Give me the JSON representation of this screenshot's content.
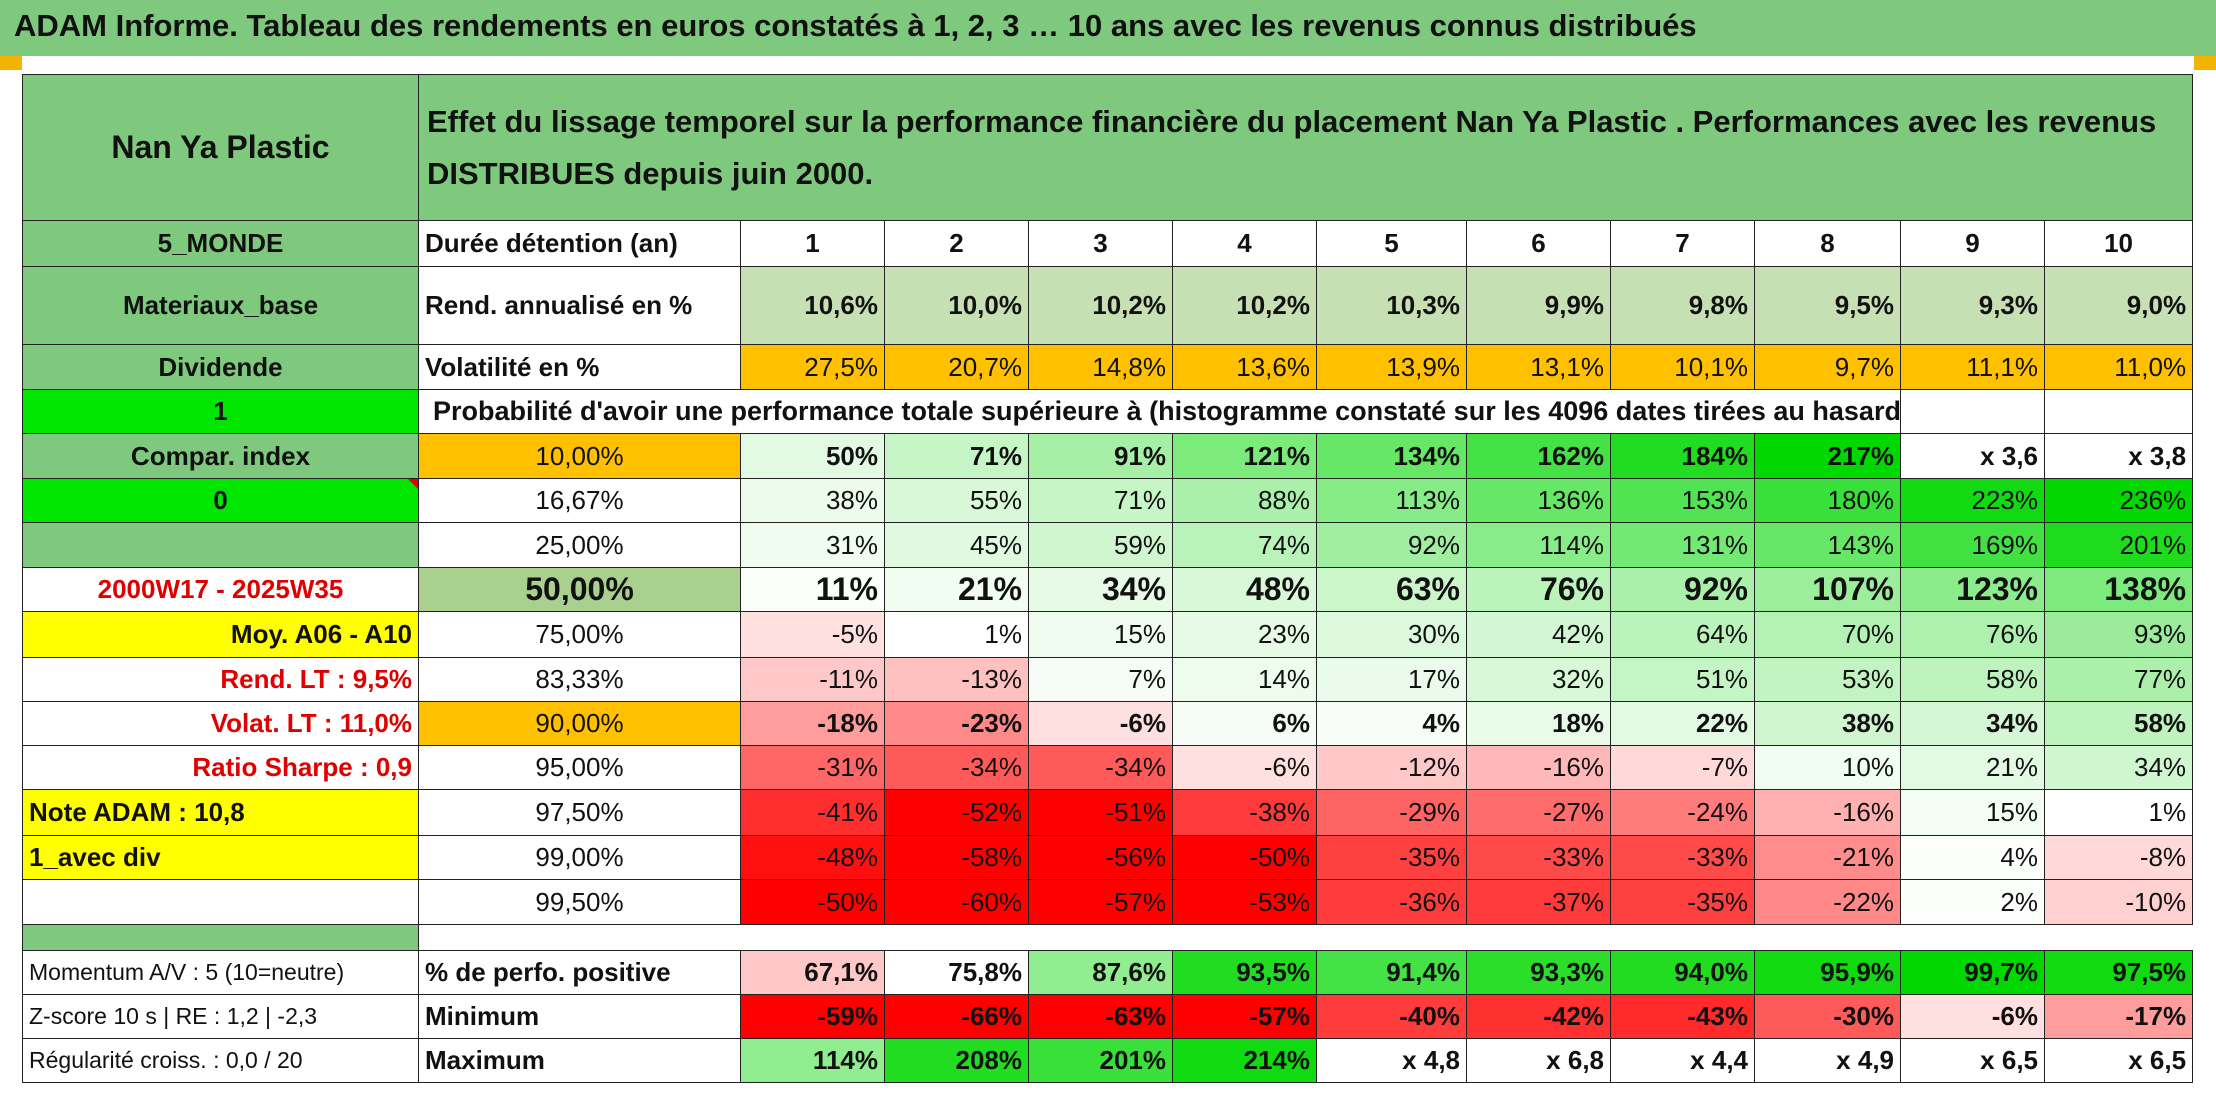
{
  "banner": {
    "title": "ADAM Informe. Tableau des rendements en euros constatés à 1, 2, 3 … 10 ans avec les revenus connus distribués"
  },
  "header": {
    "name": "Nan Ya Plastic",
    "description": "Effet du lissage temporel sur la performance financière du placement Nan Ya Plastic . Performances avec les revenus DISTRIBUES depuis juin 2000."
  },
  "side": {
    "zone": "5_MONDE",
    "sector": "Materiaux_base",
    "type": "Dividende",
    "flag1": "1",
    "compar": "Compar. index",
    "flag0": "0",
    "period": "2000W17 - 2025W35",
    "moy": "Moy. A06 - A10",
    "rend_lt": "Rend. LT :   9,5%",
    "volat_lt": "Volat. LT :   11,0%",
    "sharpe": "Ratio Sharpe :   0,9",
    "note": "Note ADAM : 10,8",
    "avec_div": "1_avec div",
    "momentum": "Momentum A/V : 5 (10=neutre)",
    "zscore": "Z-score 10 s | RE : 1,2 | -2,3",
    "regularite": "Régularité croiss. : 0,0 / 20"
  },
  "labels": {
    "duree": "Durée détention (an)",
    "rend": "Rend. annualisé en %",
    "volat": "Volatilité en %",
    "proba": "Probabilité d'avoir une performance totale supérieure à (histogramme constaté sur les 4096 dates tirées au hasard)",
    "positive": "% de perfo. positive",
    "minimum": "Minimum",
    "maximum": "Maximum"
  },
  "years": [
    "1",
    "2",
    "3",
    "4",
    "5",
    "6",
    "7",
    "8",
    "9",
    "10"
  ],
  "rend": [
    "10,6%",
    "10,0%",
    "10,2%",
    "10,2%",
    "10,3%",
    "9,9%",
    "9,8%",
    "9,5%",
    "9,3%",
    "9,0%"
  ],
  "volat": [
    "27,5%",
    "20,7%",
    "14,8%",
    "13,6%",
    "13,9%",
    "13,1%",
    "10,1%",
    "9,7%",
    "11,1%",
    "11,0%"
  ],
  "proba_rows": [
    {
      "pct": "10,00%",
      "values": [
        "50%",
        "71%",
        "91%",
        "121%",
        "134%",
        "162%",
        "184%",
        "217%",
        "x 3,6",
        "x 3,8"
      ]
    },
    {
      "pct": "16,67%",
      "values": [
        "38%",
        "55%",
        "71%",
        "88%",
        "113%",
        "136%",
        "153%",
        "180%",
        "223%",
        "236%"
      ]
    },
    {
      "pct": "25,00%",
      "values": [
        "31%",
        "45%",
        "59%",
        "74%",
        "92%",
        "114%",
        "131%",
        "143%",
        "169%",
        "201%"
      ]
    },
    {
      "pct": "50,00%",
      "values": [
        "11%",
        "21%",
        "34%",
        "48%",
        "63%",
        "76%",
        "92%",
        "107%",
        "123%",
        "138%"
      ]
    },
    {
      "pct": "75,00%",
      "values": [
        "-5%",
        "1%",
        "15%",
        "23%",
        "30%",
        "42%",
        "64%",
        "70%",
        "76%",
        "93%"
      ]
    },
    {
      "pct": "83,33%",
      "values": [
        "-11%",
        "-13%",
        "7%",
        "14%",
        "17%",
        "32%",
        "51%",
        "53%",
        "58%",
        "77%"
      ]
    },
    {
      "pct": "90,00%",
      "values": [
        "-18%",
        "-23%",
        "-6%",
        "6%",
        "4%",
        "18%",
        "22%",
        "38%",
        "34%",
        "58%"
      ]
    },
    {
      "pct": "95,00%",
      "values": [
        "-31%",
        "-34%",
        "-34%",
        "-6%",
        "-12%",
        "-16%",
        "-7%",
        "10%",
        "21%",
        "34%"
      ]
    },
    {
      "pct": "97,50%",
      "values": [
        "-41%",
        "-52%",
        "-51%",
        "-38%",
        "-29%",
        "-27%",
        "-24%",
        "-16%",
        "15%",
        "1%"
      ]
    },
    {
      "pct": "99,00%",
      "values": [
        "-48%",
        "-58%",
        "-56%",
        "-50%",
        "-35%",
        "-33%",
        "-33%",
        "-21%",
        "4%",
        "-8%"
      ]
    },
    {
      "pct": "99,50%",
      "values": [
        "-50%",
        "-60%",
        "-57%",
        "-53%",
        "-36%",
        "-37%",
        "-35%",
        "-22%",
        "2%",
        "-10%"
      ]
    }
  ],
  "positive": [
    "67,1%",
    "75,8%",
    "87,6%",
    "93,5%",
    "91,4%",
    "93,3%",
    "94,0%",
    "95,9%",
    "99,7%",
    "97,5%"
  ],
  "minimum": [
    "-59%",
    "-66%",
    "-63%",
    "-57%",
    "-40%",
    "-42%",
    "-43%",
    "-30%",
    "-6%",
    "-17%"
  ],
  "maximum": [
    "114%",
    "208%",
    "201%",
    "214%",
    "x 4,8",
    "x 6,8",
    "x 4,4",
    "x 4,9",
    "x 6,5",
    "x 6,5"
  ],
  "colors": {
    "header_green": "#7fc97f",
    "yellow": "#ffff00",
    "orange": "#ffc000",
    "bright_green": "#00e600",
    "red_text": "#e00000"
  },
  "cell_colors": {
    "rend": [
      "#c6e0b4",
      "#c6e0b4",
      "#c6e0b4",
      "#c6e0b4",
      "#c6e0b4",
      "#c6e0b4",
      "#c6e0b4",
      "#c6e0b4",
      "#c6e0b4",
      "#c6e0b4"
    ],
    "volat": [
      "#ffc000",
      "#ffc000",
      "#ffc000",
      "#ffc000",
      "#ffc000",
      "#ffc000",
      "#ffc000",
      "#ffc000",
      "#ffc000",
      "#ffc000"
    ],
    "proba": [
      [
        "#e2f9e2",
        "#c6f5c6",
        "#a6f0a6",
        "#7ceb7c",
        "#66e866",
        "#44e244",
        "#22dc22",
        "#00d800",
        "#ffffff",
        "#ffffff"
      ],
      [
        "#ecfbec",
        "#d8f8d8",
        "#c6f5c6",
        "#aaf0aa",
        "#86ec86",
        "#66e866",
        "#52e352",
        "#3ae03a",
        "#12da12",
        "#00d800"
      ],
      [
        "#f0fcf0",
        "#e0f9e0",
        "#cff6cf",
        "#b9f3b9",
        "#a0efa0",
        "#88ec88",
        "#72e972",
        "#66e866",
        "#42e142",
        "#1edb1e"
      ],
      [
        "#fafffa",
        "#f2fdf2",
        "#e6fae6",
        "#d8f8d8",
        "#caf6ca",
        "#bbf4bb",
        "#aaf0aa",
        "#9cee9c",
        "#8cec8c",
        "#7cea7c"
      ],
      [
        "#ffe0e0",
        "#ffffff",
        "#f0fcf0",
        "#e6fae6",
        "#ddf9dd",
        "#d2f7d2",
        "#bbf4bb",
        "#b4f2b4",
        "#aef1ae",
        "#9ceb9c"
      ],
      [
        "#ffc8c8",
        "#ffc0c0",
        "#f6fdf6",
        "#eefcee",
        "#ebfbeb",
        "#d8f8d8",
        "#c4f5c4",
        "#c2f4c2",
        "#bef3be",
        "#aaf0aa"
      ],
      [
        "#ff9c9c",
        "#ff8a8a",
        "#ffe0e0",
        "#f6fdf6",
        "#f8fdf8",
        "#e8fae8",
        "#e2f9e2",
        "#d0f6d0",
        "#d6f7d6",
        "#bef3be"
      ],
      [
        "#ff6666",
        "#ff5a5a",
        "#ff5a5a",
        "#ffe0e0",
        "#ffc8c8",
        "#ffb8b8",
        "#ffd8d8",
        "#f2fdf2",
        "#e2f9e2",
        "#d0f6d0"
      ],
      [
        "#ff2e2e",
        "#ff0000",
        "#ff0000",
        "#ff3a3a",
        "#ff6464",
        "#ff6c6c",
        "#ff7c7c",
        "#ffb0b0",
        "#f4fdf4",
        "#ffffff"
      ],
      [
        "#ff1010",
        "#ff0000",
        "#ff0000",
        "#ff0000",
        "#ff4040",
        "#ff4a4a",
        "#ff4a4a",
        "#ff8c8c",
        "#fcfffc",
        "#ffd8d8"
      ],
      [
        "#ff0000",
        "#ff0000",
        "#ff0000",
        "#ff0000",
        "#ff3c3c",
        "#ff3a3a",
        "#ff4040",
        "#ff8888",
        "#fdfffd",
        "#ffd0d0"
      ]
    ],
    "positive": [
      "#ffc8c8",
      "#ffffff",
      "#90ee90",
      "#22dc22",
      "#44e244",
      "#2ade2a",
      "#22dc22",
      "#10da10",
      "#00d800",
      "#10da10"
    ],
    "minimum": [
      "#ff0000",
      "#ff0000",
      "#ff0000",
      "#ff0000",
      "#ff3c3c",
      "#ff3030",
      "#ff2a2a",
      "#ff5a5a",
      "#ffe0e0",
      "#ff9c9c"
    ],
    "maximum": [
      "#90ee90",
      "#22dc22",
      "#3ae03a",
      "#10da10",
      "#ffffff",
      "#ffffff",
      "#ffffff",
      "#ffffff",
      "#ffffff",
      "#ffffff"
    ]
  }
}
